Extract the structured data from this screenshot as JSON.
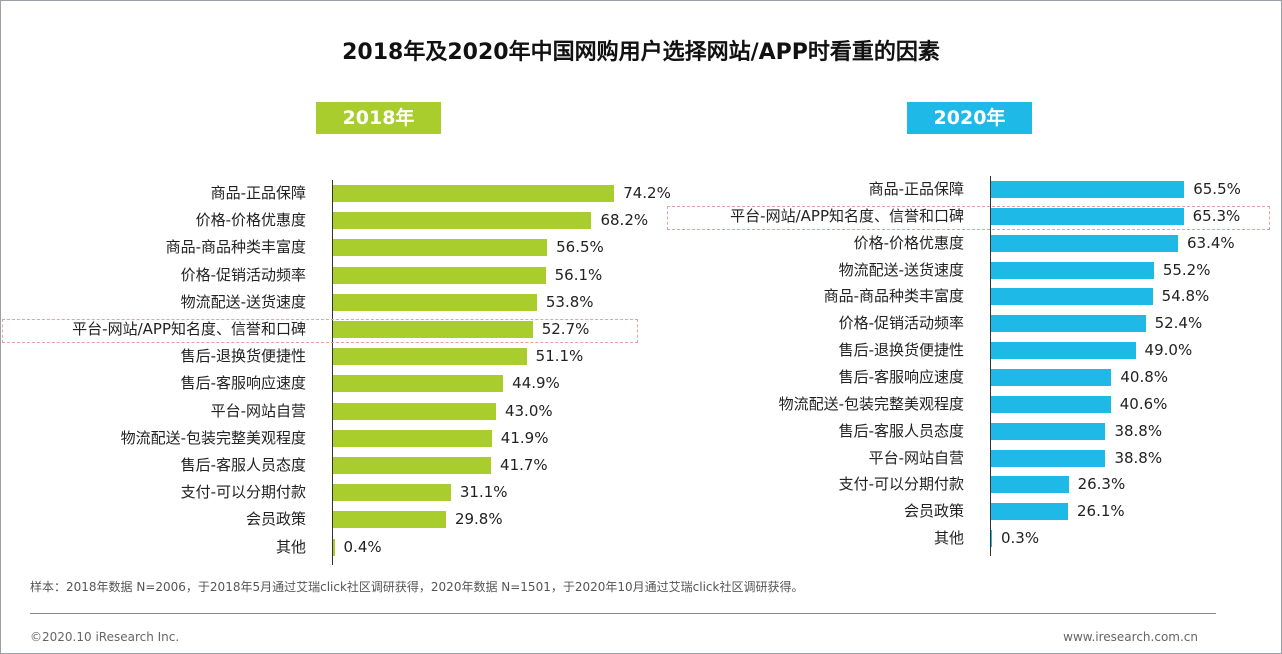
{
  "chart_data": [
    {
      "type": "bar",
      "orientation": "horizontal",
      "title": "2018年",
      "color": "#a9cd2c",
      "categories": [
        "商品-正品保障",
        "价格-价格优惠度",
        "商品-商品种类丰富度",
        "价格-促销活动频率",
        "物流配送-送货速度",
        "平台-网站/APP知名度、信誉和口碑",
        "售后-退换货便捷性",
        "售后-客服响应速度",
        "平台-网站自营",
        "物流配送-包装完整美观程度",
        "售后-客服人员态度",
        "支付-可以分期付款",
        "会员政策",
        "其他"
      ],
      "values": [
        74.2,
        68.2,
        56.5,
        56.1,
        53.8,
        52.7,
        51.1,
        44.9,
        43.0,
        41.9,
        41.7,
        31.1,
        29.8,
        0.4
      ],
      "labels": [
        "74.2%",
        "68.2%",
        "56.5%",
        "56.1%",
        "53.8%",
        "52.7%",
        "51.1%",
        "44.9%",
        "43.0%",
        "41.9%",
        "41.7%",
        "31.1%",
        "29.8%",
        "0.4%"
      ],
      "highlighted": "平台-网站/APP知名度、信誉和口碑",
      "grid": false
    },
    {
      "type": "bar",
      "orientation": "horizontal",
      "title": "2020年",
      "color": "#1fb9e8",
      "categories": [
        "商品-正品保障",
        "平台-网站/APP知名度、信誉和口碑",
        "价格-价格优惠度",
        "物流配送-送货速度",
        "商品-商品种类丰富度",
        "价格-促销活动频率",
        "售后-退换货便捷性",
        "售后-客服响应速度",
        "物流配送-包装完整美观程度",
        "售后-客服人员态度",
        "平台-网站自营",
        "支付-可以分期付款",
        "会员政策",
        "其他"
      ],
      "values": [
        65.5,
        65.3,
        63.4,
        55.2,
        54.8,
        52.4,
        49.0,
        40.8,
        40.6,
        38.8,
        38.8,
        26.3,
        26.1,
        0.3
      ],
      "labels": [
        "65.5%",
        "65.3%",
        "63.4%",
        "55.2%",
        "54.8%",
        "52.4%",
        "49.0%",
        "40.8%",
        "40.6%",
        "38.8%",
        "38.8%",
        "26.3%",
        "26.1%",
        "0.3%"
      ],
      "highlighted": "平台-网站/APP知名度、信誉和口碑",
      "grid": false
    }
  ],
  "title": "2018年及2020年中国网购用户选择网站/APP时看重的因素",
  "note": "样本：2018年数据 N=2006，于2018年5月通过艾瑞click社区调研获得，2020年数据 N=1501，于2020年10月通过艾瑞click社区调研获得。",
  "copyright": "©2020.10 iResearch Inc.",
  "website": "www.iresearch.com.cn"
}
